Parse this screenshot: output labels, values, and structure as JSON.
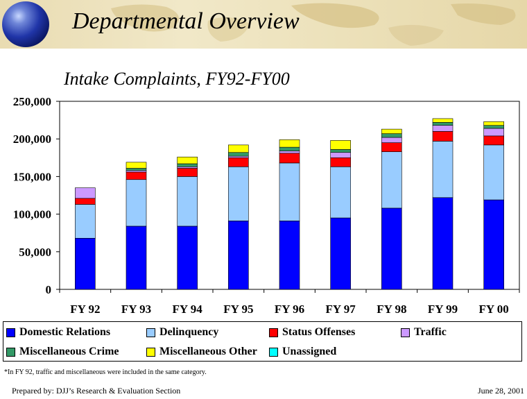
{
  "header": {
    "title": "Departmental Overview"
  },
  "chart_data": {
    "type": "stacked_bar",
    "title": "Intake Complaints, FY92-FY00",
    "categories": [
      "FY 92",
      "FY 93",
      "FY 94",
      "FY 95",
      "FY 96",
      "FY 97",
      "FY 98",
      "FY 99",
      "FY 00"
    ],
    "yticks": [
      "0",
      "50,000",
      "100,000",
      "150,000",
      "200,000",
      "250,000"
    ],
    "ylim": [
      0,
      250000
    ],
    "grid": false,
    "legend_placement": "bottom",
    "series": [
      {
        "name": "Domestic Relations",
        "color": "#0000ff",
        "values": [
          68000,
          84000,
          84000,
          91000,
          91000,
          95000,
          108000,
          122000,
          119000
        ]
      },
      {
        "name": "Delinquency",
        "color": "#99ccff",
        "values": [
          45000,
          62000,
          66000,
          72000,
          77000,
          68000,
          75000,
          75000,
          73000
        ]
      },
      {
        "name": "Status Offenses",
        "color": "#ff0000",
        "values": [
          8000,
          10000,
          11000,
          12000,
          13000,
          12000,
          12000,
          13000,
          12000
        ]
      },
      {
        "name": "Traffic",
        "color": "#cc99ff",
        "values": [
          14000,
          2000,
          2000,
          2000,
          3000,
          7000,
          7000,
          8000,
          10000
        ]
      },
      {
        "name": "Miscellaneous Crime",
        "color": "#339966",
        "values": [
          0,
          3000,
          4000,
          5000,
          5000,
          4000,
          5000,
          4000,
          4000
        ]
      },
      {
        "name": "Miscellaneous Other",
        "color": "#ffff00",
        "values": [
          0,
          8000,
          9000,
          10000,
          10000,
          12000,
          6000,
          5000,
          5000
        ]
      },
      {
        "name": "Unassigned",
        "color": "#00ffff",
        "values": [
          0,
          0,
          0,
          0,
          0,
          0,
          0,
          0,
          0
        ]
      }
    ]
  },
  "footnote": "*In FY 92, traffic and miscellaneous were included in the same category.",
  "footer": {
    "prepared_by": "Prepared by: DJJ’s Research & Evaluation Section",
    "date": "June 28, 2001"
  }
}
